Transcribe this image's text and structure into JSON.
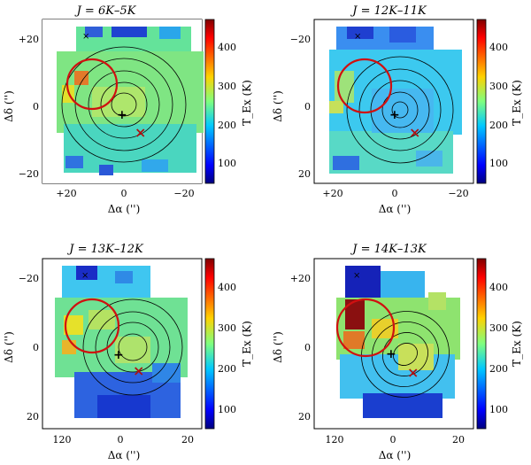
{
  "figure": {
    "panels": [
      {
        "title": "J = 6K–5K",
        "x_axis_label": "Δα ('')",
        "y_axis_label": "Δδ ('')",
        "x_ticks": [
          "+20",
          "0",
          "−20"
        ],
        "y_ticks": [
          "+20",
          "0",
          "−20"
        ],
        "colorbar_label": "T_Ex (K)",
        "colorbar_ticks": [
          "100",
          "200",
          "300",
          "400"
        ]
      },
      {
        "title": "J = 12K–11K",
        "x_axis_label": "Δα ('')",
        "y_axis_label": "Δδ ('')",
        "x_ticks": [
          "+20",
          "0",
          "−20"
        ],
        "y_ticks": [
          "−20",
          "0",
          "20"
        ],
        "colorbar_label": "T_Ex (K)",
        "colorbar_ticks": [
          "100",
          "200",
          "300",
          "400"
        ]
      },
      {
        "title": "J = 13K–12K",
        "x_axis_label": "Δα ('')",
        "y_axis_label": "Δδ ('')",
        "x_ticks": [
          "120",
          "0",
          "20"
        ],
        "y_ticks": [
          "−20",
          "0",
          "20"
        ],
        "colorbar_label": "T_Ex (K)",
        "colorbar_ticks": [
          "100",
          "200",
          "300",
          "400"
        ]
      },
      {
        "title": "J = 14K–13K",
        "x_axis_label": "Δα ('')",
        "y_axis_label": "Δδ ('')",
        "x_ticks": [
          "120",
          "0",
          "20"
        ],
        "y_ticks": [
          "+20",
          "0",
          "20"
        ],
        "colorbar_label": "T_Ex (K)",
        "colorbar_ticks": [
          "100",
          "200",
          "300",
          "400"
        ]
      }
    ]
  }
}
